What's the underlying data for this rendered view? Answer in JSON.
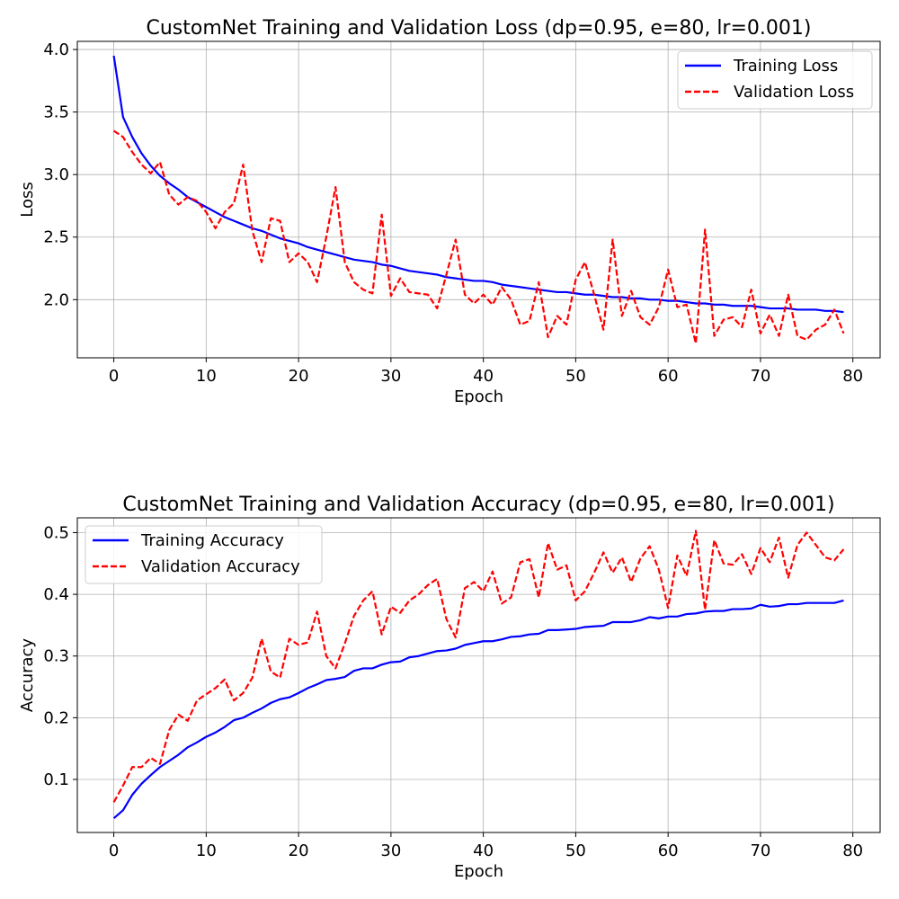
{
  "chart_data": [
    {
      "type": "line",
      "title": "CustomNet Training and Validation Loss (dp=0.95, e=80, lr=0.001)",
      "xlabel": "Epoch",
      "ylabel": "Loss",
      "xlim": [
        -3.95,
        82.95
      ],
      "ylim": [
        1.535,
        4.065
      ],
      "xticks": [
        0,
        10,
        20,
        30,
        40,
        50,
        60,
        70,
        80
      ],
      "yticks": [
        2.0,
        2.5,
        3.0,
        3.5,
        4.0
      ],
      "xtick_labels": [
        "0",
        "10",
        "20",
        "30",
        "40",
        "50",
        "60",
        "70",
        "80"
      ],
      "ytick_labels": [
        "2.0",
        "2.5",
        "3.0",
        "3.5",
        "4.0"
      ],
      "grid": true,
      "legend_position": "upper right",
      "series": [
        {
          "name": "Training Loss",
          "color": "#0000ff",
          "style": "solid",
          "values": [
            3.95,
            3.46,
            3.3,
            3.17,
            3.07,
            2.99,
            2.93,
            2.88,
            2.82,
            2.78,
            2.74,
            2.7,
            2.66,
            2.63,
            2.6,
            2.57,
            2.55,
            2.52,
            2.49,
            2.47,
            2.45,
            2.42,
            2.4,
            2.38,
            2.36,
            2.34,
            2.32,
            2.31,
            2.3,
            2.28,
            2.27,
            2.25,
            2.23,
            2.22,
            2.21,
            2.2,
            2.18,
            2.17,
            2.16,
            2.15,
            2.15,
            2.14,
            2.12,
            2.11,
            2.1,
            2.09,
            2.08,
            2.07,
            2.06,
            2.06,
            2.05,
            2.04,
            2.04,
            2.03,
            2.02,
            2.02,
            2.01,
            2.01,
            2.0,
            2.0,
            1.99,
            1.99,
            1.98,
            1.97,
            1.97,
            1.96,
            1.96,
            1.95,
            1.95,
            1.95,
            1.94,
            1.93,
            1.93,
            1.93,
            1.92,
            1.92,
            1.92,
            1.91,
            1.91,
            1.9
          ]
        },
        {
          "name": "Validation Loss",
          "color": "#ff0000",
          "style": "dashed",
          "values": [
            3.35,
            3.3,
            3.18,
            3.08,
            3.01,
            3.1,
            2.84,
            2.76,
            2.82,
            2.79,
            2.7,
            2.57,
            2.7,
            2.77,
            3.08,
            2.55,
            2.3,
            2.65,
            2.63,
            2.3,
            2.37,
            2.3,
            2.14,
            2.5,
            2.9,
            2.3,
            2.14,
            2.08,
            2.05,
            2.68,
            2.03,
            2.17,
            2.06,
            2.05,
            2.04,
            1.93,
            2.2,
            2.48,
            2.04,
            1.97,
            2.04,
            1.96,
            2.1,
            2.0,
            1.8,
            1.83,
            2.14,
            1.7,
            1.87,
            1.8,
            2.16,
            2.3,
            2.04,
            1.76,
            2.48,
            1.87,
            2.07,
            1.86,
            1.8,
            1.94,
            2.24,
            1.94,
            1.96,
            1.65,
            2.56,
            1.71,
            1.84,
            1.86,
            1.78,
            2.08,
            1.73,
            1.88,
            1.71,
            2.04,
            1.71,
            1.68,
            1.76,
            1.8,
            1.92,
            1.73
          ]
        }
      ]
    },
    {
      "type": "line",
      "title": "CustomNet Training and Validation Accuracy (dp=0.95, e=80, lr=0.001)",
      "xlabel": "Epoch",
      "ylabel": "Accuracy",
      "xlim": [
        -3.95,
        82.95
      ],
      "ylim": [
        0.014,
        0.524
      ],
      "xticks": [
        0,
        10,
        20,
        30,
        40,
        50,
        60,
        70,
        80
      ],
      "yticks": [
        0.1,
        0.2,
        0.3,
        0.4,
        0.5
      ],
      "xtick_labels": [
        "0",
        "10",
        "20",
        "30",
        "40",
        "50",
        "60",
        "70",
        "80"
      ],
      "ytick_labels": [
        "0.1",
        "0.2",
        "0.3",
        "0.4",
        "0.5"
      ],
      "grid": true,
      "legend_position": "upper left",
      "series": [
        {
          "name": "Training Accuracy",
          "color": "#0000ff",
          "style": "solid",
          "values": [
            0.037,
            0.05,
            0.075,
            0.093,
            0.107,
            0.12,
            0.13,
            0.14,
            0.152,
            0.16,
            0.169,
            0.176,
            0.185,
            0.196,
            0.2,
            0.208,
            0.215,
            0.224,
            0.23,
            0.233,
            0.24,
            0.248,
            0.254,
            0.261,
            0.263,
            0.266,
            0.276,
            0.28,
            0.28,
            0.286,
            0.29,
            0.291,
            0.298,
            0.3,
            0.304,
            0.308,
            0.309,
            0.312,
            0.318,
            0.321,
            0.324,
            0.324,
            0.327,
            0.331,
            0.332,
            0.335,
            0.336,
            0.342,
            0.342,
            0.343,
            0.344,
            0.347,
            0.348,
            0.349,
            0.355,
            0.355,
            0.355,
            0.358,
            0.363,
            0.361,
            0.364,
            0.364,
            0.368,
            0.369,
            0.372,
            0.373,
            0.373,
            0.376,
            0.376,
            0.377,
            0.383,
            0.38,
            0.381,
            0.384,
            0.384,
            0.386,
            0.386,
            0.386,
            0.386,
            0.39
          ]
        },
        {
          "name": "Validation Accuracy",
          "color": "#ff0000",
          "style": "dashed",
          "values": [
            0.063,
            0.09,
            0.12,
            0.12,
            0.135,
            0.125,
            0.18,
            0.205,
            0.195,
            0.228,
            0.238,
            0.248,
            0.262,
            0.228,
            0.24,
            0.265,
            0.328,
            0.275,
            0.265,
            0.328,
            0.318,
            0.322,
            0.372,
            0.3,
            0.28,
            0.32,
            0.365,
            0.39,
            0.405,
            0.335,
            0.38,
            0.37,
            0.39,
            0.4,
            0.415,
            0.425,
            0.36,
            0.33,
            0.41,
            0.42,
            0.405,
            0.437,
            0.385,
            0.395,
            0.452,
            0.457,
            0.395,
            0.483,
            0.44,
            0.447,
            0.39,
            0.405,
            0.435,
            0.468,
            0.435,
            0.46,
            0.42,
            0.458,
            0.478,
            0.44,
            0.378,
            0.463,
            0.43,
            0.503,
            0.375,
            0.488,
            0.45,
            0.448,
            0.465,
            0.433,
            0.475,
            0.452,
            0.492,
            0.427,
            0.48,
            0.5,
            0.48,
            0.46,
            0.455,
            0.473
          ]
        }
      ]
    }
  ]
}
